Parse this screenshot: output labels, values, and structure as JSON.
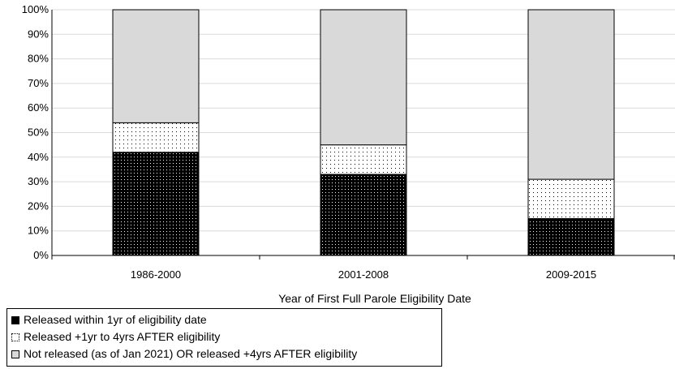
{
  "chart_data": {
    "type": "bar",
    "stacked": true,
    "title": "",
    "xlabel": "Year of First Full Parole Eligibility Date",
    "ylabel": "",
    "ylim": [
      0,
      100
    ],
    "y_ticks": [
      "0%",
      "10%",
      "20%",
      "30%",
      "40%",
      "50%",
      "60%",
      "70%",
      "80%",
      "90%",
      "100%"
    ],
    "grid": true,
    "legend_position": "bottom-left",
    "categories": [
      "1986-2000",
      "2001-2008",
      "2009-2015"
    ],
    "series": [
      {
        "name": "Released within 1yr of eligibility date",
        "values": [
          42,
          33,
          15
        ],
        "fill": "#000000",
        "pattern": "dense-dots"
      },
      {
        "name": "Released +1yr to 4yrs AFTER eligibility",
        "values": [
          12,
          12,
          16
        ],
        "fill": "#ffffff",
        "pattern": "sparse-dots"
      },
      {
        "name": "Not released (as of Jan 2021) OR released +4yrs AFTER eligibility",
        "values": [
          46,
          55,
          69
        ],
        "fill": "#d9d9d9",
        "pattern": "solid"
      }
    ]
  },
  "colors": {
    "grid": "#d9d9d9",
    "axis": "#000000",
    "bar_outline": "#000000"
  }
}
